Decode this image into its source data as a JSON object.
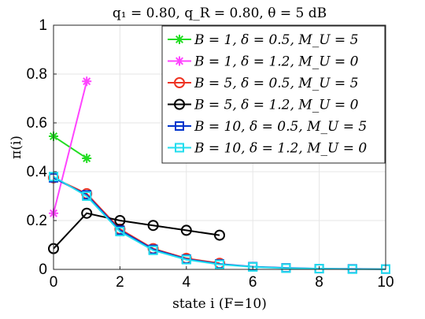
{
  "chart_data": {
    "type": "line",
    "title": "q₁ = 0.80, q_R = 0.80, θ = 5 dB",
    "xlabel": "state i (F=10)",
    "ylabel": "π(i)",
    "xlim": [
      0,
      10
    ],
    "ylim": [
      0,
      1
    ],
    "xticks": [
      "0",
      "2",
      "4",
      "6",
      "8",
      "10"
    ],
    "yticks": [
      "0",
      "0.2",
      "0.4",
      "0.6",
      "0.8",
      "1"
    ],
    "grid": true,
    "legend_position": "top-right",
    "series": [
      {
        "name": "B = 1,  δ = 0.5, M_U = 5",
        "color": "#22dd22",
        "marker": "asterisk",
        "x": [
          0,
          1
        ],
        "y": [
          0.545,
          0.455
        ]
      },
      {
        "name": "B = 1,  δ = 1.2, M_U = 0",
        "color": "#ff44ff",
        "marker": "asterisk",
        "x": [
          0,
          1
        ],
        "y": [
          0.23,
          0.77
        ]
      },
      {
        "name": "B = 5,  δ = 0.5, M_U = 5",
        "color": "#ee3322",
        "marker": "circle",
        "x": [
          0,
          1,
          2,
          3,
          4,
          5
        ],
        "y": [
          0.375,
          0.31,
          0.165,
          0.085,
          0.045,
          0.025
        ]
      },
      {
        "name": "B = 5,  δ = 1.2, M_U = 0",
        "color": "#000000",
        "marker": "circle",
        "x": [
          0,
          1,
          2,
          3,
          4,
          5
        ],
        "y": [
          0.085,
          0.23,
          0.2,
          0.18,
          0.16,
          0.14
        ]
      },
      {
        "name": "B = 10, δ = 0.5, M_U = 5",
        "color": "#0033cc",
        "marker": "square",
        "x": [
          0,
          1,
          2,
          3,
          4,
          5,
          6,
          7,
          8,
          9,
          10
        ],
        "y": [
          0.375,
          0.305,
          0.16,
          0.082,
          0.042,
          0.022,
          0.011,
          0.006,
          0.003,
          0.002,
          0.001
        ]
      },
      {
        "name": "B = 10, δ = 1.2, M_U = 0",
        "color": "#22ddee",
        "marker": "square",
        "x": [
          0,
          1,
          2,
          3,
          4,
          5,
          6,
          7,
          8,
          9,
          10
        ],
        "y": [
          0.38,
          0.3,
          0.155,
          0.078,
          0.04,
          0.02,
          0.01,
          0.005,
          0.003,
          0.001,
          0.001
        ]
      }
    ]
  }
}
